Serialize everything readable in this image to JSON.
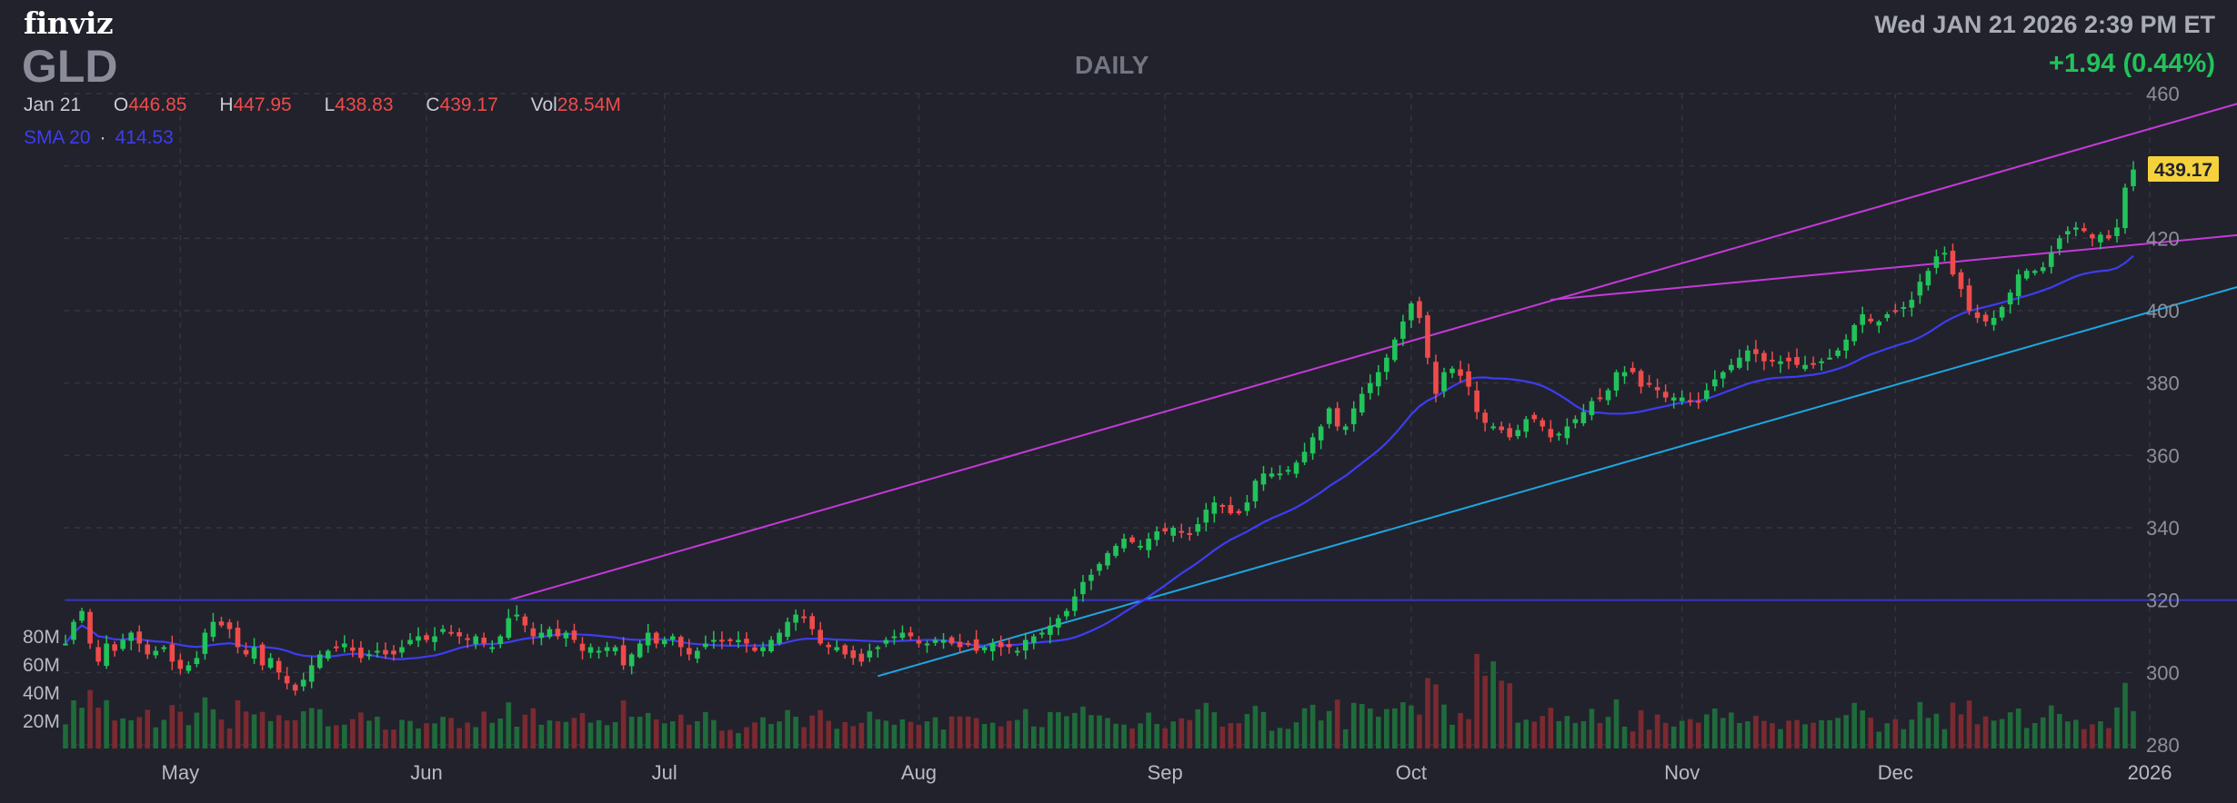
{
  "header": {
    "logo": "finviz",
    "ticker": "GLD",
    "timeframe": "DAILY",
    "datetime": "Wed JAN 21 2026 2:39 PM ET",
    "change": "+1.94 (0.44%)"
  },
  "ohlc": {
    "date": "Jan 21",
    "open_label": "O",
    "open": "446.85",
    "high_label": "H",
    "high": "447.95",
    "low_label": "L",
    "low": "438.83",
    "close_label": "C",
    "close": "439.17",
    "vol_label": "Vol",
    "vol": "28.54M"
  },
  "sma": {
    "label": "SMA 20",
    "value": "414.53"
  },
  "colors": {
    "up": "#21c35a",
    "down": "#ef4b4b",
    "vol_up": "#1f6b3b",
    "vol_down": "#7a2a30",
    "sma": "#3d3df2",
    "trend_magenta": "#c43ad8",
    "trend_cyan": "#1ea7e1",
    "hline": "#3535c4",
    "price_tag": "#f5d23c"
  },
  "chart_data": {
    "type": "candlestick",
    "title": "GLD",
    "subtitle": "DAILY",
    "price_axis": {
      "ticks": [
        280,
        300,
        320,
        340,
        360,
        380,
        400,
        420,
        440,
        460
      ],
      "labels": [
        "280",
        "300",
        "320",
        "340",
        "360",
        "380",
        "400",
        "420",
        "",
        "460"
      ],
      "ylim": [
        280,
        460
      ],
      "position": "right"
    },
    "volume_axis": {
      "ticks": [
        20,
        40,
        60,
        80
      ],
      "labels": [
        "20M",
        "40M",
        "60M",
        "80M"
      ],
      "unit": "M"
    },
    "x_axis": {
      "labels": [
        "May",
        "Jun",
        "Jul",
        "Aug",
        "Sep",
        "Oct",
        "Nov",
        "Dec",
        "2026"
      ],
      "label_bar_index": [
        14,
        44,
        73,
        104,
        134,
        164,
        197,
        223,
        254
      ]
    },
    "last_price": "439.17",
    "sma_period": 20,
    "grid": true,
    "trendlines": [
      {
        "color": "magenta",
        "from": {
          "bar": 54,
          "price": 320
        },
        "to": {
          "bar": 269,
          "price": 460
        }
      },
      {
        "color": "magenta",
        "from": {
          "bar": 181,
          "price": 403
        },
        "to": {
          "bar": 270,
          "price": 422
        }
      },
      {
        "color": "cyan",
        "from": {
          "bar": 99,
          "price": 299
        },
        "to": {
          "bar": 270,
          "price": 410
        }
      },
      {
        "color": "blue",
        "from": {
          "bar": 0,
          "price": 320
        },
        "to": {
          "bar": 270,
          "price": 320
        }
      }
    ],
    "closes": [
      308,
      314,
      317,
      308,
      303,
      308,
      306,
      309,
      311,
      308,
      305,
      306,
      307,
      303,
      301,
      302,
      304,
      311,
      314,
      313,
      312,
      307,
      305,
      307,
      302,
      304,
      300,
      297,
      295,
      298,
      302,
      305,
      306,
      307,
      308,
      306,
      304,
      305,
      306,
      305,
      305,
      307,
      309,
      310,
      309,
      310,
      312,
      311,
      310,
      309,
      310,
      308,
      307,
      310,
      315,
      316,
      313,
      310,
      311,
      312,
      310,
      311,
      309,
      306,
      307,
      306,
      307,
      307,
      302,
      305,
      308,
      311,
      308,
      309,
      310,
      307,
      305,
      306,
      308,
      309,
      309,
      309,
      309,
      308,
      306,
      307,
      309,
      311,
      314,
      316,
      315,
      312,
      308,
      307,
      307,
      305,
      304,
      303,
      306,
      307,
      309,
      310,
      311,
      310,
      308,
      308,
      309,
      309,
      308,
      307,
      308,
      306,
      307,
      308,
      307,
      307,
      306,
      309,
      310,
      311,
      313,
      315,
      317,
      321,
      325,
      327,
      330,
      333,
      335,
      337,
      336,
      335,
      337,
      339,
      339,
      340,
      339,
      338,
      341,
      345,
      347,
      346,
      344,
      344,
      347,
      353,
      355,
      355,
      355,
      356,
      358,
      361,
      365,
      368,
      373,
      368,
      368,
      373,
      377,
      380,
      383,
      387,
      392,
      397,
      402,
      398,
      387,
      377,
      383,
      384,
      382,
      379,
      372,
      369,
      368,
      367,
      365,
      367,
      370,
      370,
      368,
      365,
      366,
      368,
      370,
      372,
      375,
      376,
      378,
      383,
      383,
      383,
      379,
      380,
      378,
      376,
      376,
      376,
      375,
      375,
      378,
      381,
      383,
      385,
      387,
      389,
      388,
      386,
      386,
      386,
      386,
      385,
      385,
      385,
      386,
      387,
      389,
      392,
      396,
      399,
      397,
      397,
      399,
      400,
      401,
      403,
      408,
      411,
      415,
      416,
      410,
      406,
      400,
      398,
      397,
      398,
      401,
      405,
      410,
      411,
      411,
      412,
      416,
      420,
      422,
      423,
      422,
      420,
      421,
      420,
      423,
      434,
      439
    ]
  }
}
